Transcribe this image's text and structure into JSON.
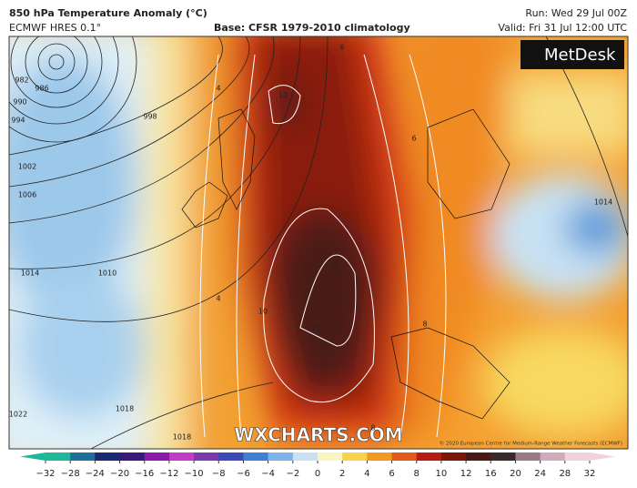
{
  "header": {
    "title": "850 hPa Temperature Anomaly (°C)",
    "model": "ECMWF HRES 0.1°",
    "base": "Base: CFSR 1979-2010 climatology",
    "run": "Run: Wed 29 Jul 00Z",
    "valid": "Valid: Fri 31 Jul 12:00 UTC"
  },
  "logo": "MetDesk",
  "watermark": "WXCHARTS.COM",
  "copyright": "© 2020 European Centre for Medium-Range Weather Forecasts (ECMWF)",
  "map_labels": [
    "982",
    "986",
    "990",
    "994",
    "998",
    "1002",
    "1006",
    "1010",
    "1014",
    "1018",
    "1018",
    "1022",
    "1014",
    "10",
    "12",
    "12",
    "10",
    "8",
    "6",
    "4",
    "4",
    "6",
    "8"
  ],
  "colorbar": {
    "ticks": [
      {
        "value": -32,
        "label": "−32"
      },
      {
        "value": -28,
        "label": "−28"
      },
      {
        "value": -24,
        "label": "−24"
      },
      {
        "value": -20,
        "label": "−20"
      },
      {
        "value": -16,
        "label": "−16"
      },
      {
        "value": -12,
        "label": "−12"
      },
      {
        "value": -10,
        "label": "−10"
      },
      {
        "value": -8,
        "label": "−8"
      },
      {
        "value": -6,
        "label": "−6"
      },
      {
        "value": -4,
        "label": "−4"
      },
      {
        "value": -2,
        "label": "−2"
      },
      0,
      2,
      4,
      6,
      8,
      10,
      12,
      16,
      20,
      24,
      28,
      32
    ],
    "colors": [
      "#1fb89a",
      "#1f6f9a",
      "#1b2a6e",
      "#3a1a78",
      "#8a1aa8",
      "#c23cc8",
      "#7a3aa8",
      "#3a4ab8",
      "#3f7fd0",
      "#7ab4e8",
      "#c8e2f4",
      "#fbf4c0",
      "#f8d24a",
      "#f29a20",
      "#e25a18",
      "#b81c10",
      "#7a1808",
      "#4a1a14",
      "#3a2a2a",
      "#9a7a86",
      "#d2aabb",
      "#f0d2dc"
    ]
  }
}
